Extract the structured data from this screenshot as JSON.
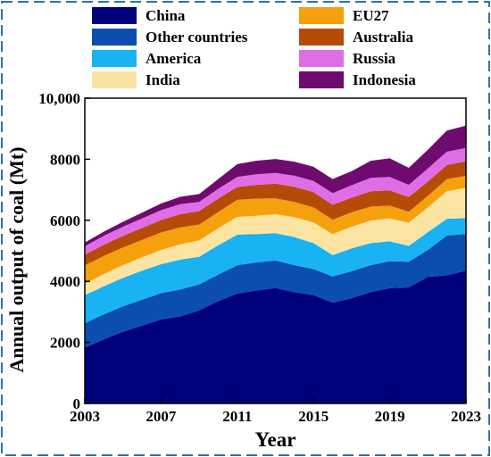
{
  "chart_data": {
    "type": "area",
    "stacked": true,
    "xlabel": "Year",
    "ylabel": "Annual output of coal (Mt)",
    "xlim": [
      2003,
      2023
    ],
    "ylim": [
      0,
      10000
    ],
    "x_ticks": [
      2003,
      2007,
      2011,
      2015,
      2019,
      2023
    ],
    "y_ticks": [
      {
        "value": 0,
        "label": "0"
      },
      {
        "value": 2000,
        "label": "2000"
      },
      {
        "value": 4000,
        "label": "4000"
      },
      {
        "value": 6000,
        "label": "6000"
      },
      {
        "value": 8000,
        "label": "8000"
      },
      {
        "value": 10000,
        "label": "10,000"
      }
    ],
    "legend_position": "top",
    "x": [
      2003,
      2004,
      2005,
      2006,
      2007,
      2008,
      2009,
      2010,
      2011,
      2012,
      2013,
      2014,
      2015,
      2016,
      2017,
      2018,
      2019,
      2020,
      2021,
      2022,
      2023
    ],
    "series": [
      {
        "name": "China",
        "color": "#00007a",
        "values": [
          1830,
          2100,
          2350,
          2550,
          2750,
          2850,
          3050,
          3350,
          3600,
          3700,
          3780,
          3650,
          3550,
          3300,
          3450,
          3650,
          3780,
          3800,
          4150,
          4200,
          4350
        ]
      },
      {
        "name": "Other countries",
        "color": "#0c4db0",
        "values": [
          800,
          820,
          830,
          850,
          860,
          880,
          850,
          870,
          930,
          920,
          900,
          880,
          850,
          860,
          880,
          880,
          880,
          840,
          880,
          1300,
          1200
        ]
      },
      {
        "name": "America",
        "color": "#19b2f2",
        "values": [
          920,
          920,
          930,
          950,
          950,
          980,
          900,
          960,
          1000,
          930,
          900,
          920,
          850,
          700,
          750,
          720,
          650,
          520,
          580,
          550,
          520
        ]
      },
      {
        "name": "India",
        "color": "#fbe4a2",
        "values": [
          370,
          400,
          420,
          440,
          470,
          500,
          540,
          560,
          580,
          600,
          620,
          650,
          680,
          690,
          710,
          740,
          750,
          760,
          810,
          900,
          1000
        ]
      },
      {
        "name": "EU27",
        "color": "#f5a00d",
        "values": [
          600,
          590,
          580,
          570,
          570,
          560,
          520,
          530,
          560,
          560,
          520,
          500,
          490,
          470,
          470,
          460,
          420,
          360,
          380,
          400,
          390
        ]
      },
      {
        "name": "Australia",
        "color": "#b64b08",
        "values": [
          350,
          370,
          380,
          390,
          410,
          430,
          440,
          440,
          420,
          450,
          480,
          500,
          500,
          490,
          480,
          500,
          500,
          480,
          470,
          460,
          470
        ]
      },
      {
        "name": "Russia",
        "color": "#df6ee6",
        "values": [
          280,
          290,
          300,
          310,
          320,
          330,
          300,
          320,
          330,
          350,
          350,
          360,
          370,
          380,
          410,
          440,
          440,
          400,
          430,
          440,
          440
        ]
      },
      {
        "name": "Indonesia",
        "color": "#6f0b6f",
        "values": [
          120,
          140,
          160,
          190,
          220,
          240,
          260,
          320,
          420,
          440,
          460,
          460,
          460,
          460,
          460,
          560,
          610,
          560,
          610,
          690,
          730
        ]
      }
    ],
    "legend_order": [
      "China",
      "EU27",
      "Other countries",
      "Australia",
      "America",
      "Russia",
      "India",
      "Indonesia"
    ]
  },
  "colors": {
    "frame_border": "#2f6fb5",
    "axis": "#000000"
  }
}
